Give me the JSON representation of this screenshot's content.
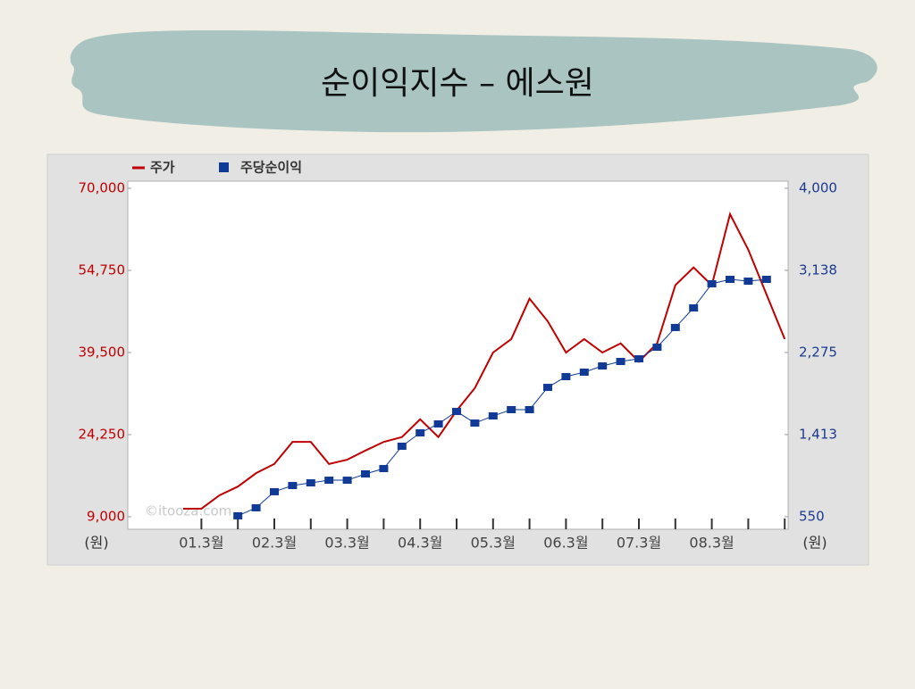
{
  "chart_data": {
    "type": "line",
    "title": "순이익지수 – 에스원",
    "watermark": "©itooza.com",
    "left_unit": "(원)",
    "right_unit": "(원)",
    "categories": [
      null,
      "01.3월",
      null,
      null,
      null,
      "02.3월",
      null,
      null,
      null,
      "03.3월",
      null,
      null,
      null,
      "04.3월",
      null,
      null,
      null,
      "05.3월",
      null,
      null,
      null,
      "06.3월",
      null,
      null,
      null,
      "07.3월",
      null,
      null,
      null,
      "08.3월",
      null,
      null,
      null,
      null
    ],
    "series": [
      {
        "name": "주가",
        "color": "#c00000",
        "marker": "none",
        "axis": "y",
        "values": [
          10500,
          10500,
          13000,
          14600,
          17100,
          18800,
          22900,
          22900,
          18800,
          19600,
          21300,
          22900,
          23800,
          27100,
          23800,
          28700,
          32900,
          39500,
          42000,
          49500,
          45300,
          39500,
          42000,
          39500,
          41200,
          37800,
          41200,
          52000,
          55300,
          52000,
          65200,
          58600,
          50300,
          42000
        ]
      },
      {
        "name": "주당순이익",
        "color": "#103a96",
        "marker": "square",
        "axis": "y2",
        "values": [
          null,
          null,
          null,
          560,
          644,
          813,
          878,
          906,
          934,
          934,
          1000,
          1056,
          1291,
          1431,
          1525,
          1656,
          1534,
          1609,
          1675,
          1675,
          1909,
          2022,
          2069,
          2134,
          2181,
          2209,
          2331,
          2538,
          2744,
          2997,
          3044,
          3025,
          3044,
          null
        ]
      }
    ],
    "ylim": [
      9000,
      70000
    ],
    "yticks": [
      {
        "value": 9000,
        "label": "9,000"
      },
      {
        "value": 24250,
        "label": "24,250"
      },
      {
        "value": 39500,
        "label": "39,500"
      },
      {
        "value": 54750,
        "label": "54,750"
      },
      {
        "value": 70000,
        "label": "70,000"
      }
    ],
    "y2lim": [
      550,
      4000
    ],
    "y2ticks": [
      550,
      {
        "value": 1413,
        "label": "1,413"
      },
      {
        "value": 2275,
        "label": "2,275"
      },
      {
        "value": 3138,
        "label": "3,138"
      },
      {
        "value": 4000,
        "label": "4,000"
      }
    ],
    "grid": false,
    "legend": "top-left"
  }
}
